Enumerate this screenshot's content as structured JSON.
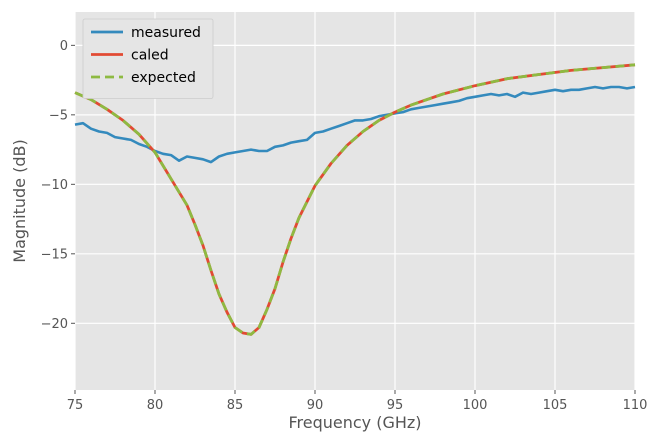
{
  "chart_data": {
    "type": "line",
    "xlabel": "Frequency (GHz)",
    "ylabel": "Magnitude (dB)",
    "xlim": [
      75,
      110
    ],
    "ylim": [
      -24.8,
      2.4
    ],
    "xticks": [
      75,
      80,
      85,
      90,
      95,
      100,
      105,
      110
    ],
    "yticks": [
      0,
      -5,
      -10,
      -15,
      -20
    ],
    "xtick_labels": [
      "75",
      "80",
      "85",
      "90",
      "95",
      "100",
      "105",
      "110"
    ],
    "ytick_labels": [
      "0",
      "−5",
      "−10",
      "−15",
      "−20"
    ],
    "grid": true,
    "style": "ggplot",
    "legend": {
      "placement": "top-left"
    },
    "series": [
      {
        "name": "measured",
        "color": "#348ABD",
        "dash": "solid",
        "x": [
          75,
          75.5,
          76,
          76.5,
          77,
          77.5,
          78,
          78.5,
          79,
          79.5,
          80,
          80.5,
          81,
          81.5,
          82,
          82.5,
          83,
          83.5,
          84,
          84.5,
          85,
          85.5,
          86,
          86.5,
          87,
          87.5,
          88,
          88.5,
          89,
          89.5,
          90,
          90.5,
          91,
          91.5,
          92,
          92.5,
          93,
          93.5,
          94,
          94.5,
          95,
          95.5,
          96,
          96.5,
          97,
          97.5,
          98,
          98.5,
          99,
          99.5,
          100,
          100.5,
          101,
          101.5,
          102,
          102.5,
          103,
          103.5,
          104,
          104.5,
          105,
          105.5,
          106,
          106.5,
          107,
          107.5,
          108,
          108.5,
          109,
          109.5,
          110
        ],
        "y": [
          -5.7,
          -5.6,
          -6.0,
          -6.2,
          -6.3,
          -6.6,
          -6.7,
          -6.8,
          -7.1,
          -7.3,
          -7.6,
          -7.8,
          -7.9,
          -8.3,
          -8.0,
          -8.1,
          -8.2,
          -8.4,
          -8.0,
          -7.8,
          -7.7,
          -7.6,
          -7.5,
          -7.6,
          -7.6,
          -7.3,
          -7.2,
          -7.0,
          -6.9,
          -6.8,
          -6.3,
          -6.2,
          -6.0,
          -5.8,
          -5.6,
          -5.4,
          -5.4,
          -5.3,
          -5.1,
          -5.0,
          -4.9,
          -4.8,
          -4.6,
          -4.5,
          -4.4,
          -4.3,
          -4.2,
          -4.1,
          -4.0,
          -3.8,
          -3.7,
          -3.6,
          -3.5,
          -3.6,
          -3.5,
          -3.7,
          -3.4,
          -3.5,
          -3.4,
          -3.3,
          -3.2,
          -3.3,
          -3.2,
          -3.2,
          -3.1,
          -3.0,
          -3.1,
          -3.0,
          -3.0,
          -3.1,
          -3.0
        ]
      },
      {
        "name": "caled",
        "color": "#E24A33",
        "dash": "solid",
        "x": [
          75,
          76,
          77,
          78,
          79,
          80,
          81,
          82,
          82.5,
          83,
          83.5,
          84,
          84.5,
          85,
          85.5,
          86,
          86.5,
          87,
          87.5,
          88,
          88.5,
          89,
          90,
          91,
          92,
          93,
          94,
          95,
          96,
          98,
          100,
          102,
          104,
          106,
          108,
          110
        ],
        "y": [
          -3.4,
          -3.9,
          -4.6,
          -5.4,
          -6.4,
          -7.7,
          -9.6,
          -11.5,
          -12.9,
          -14.4,
          -16.2,
          -17.9,
          -19.2,
          -20.3,
          -20.7,
          -20.8,
          -20.3,
          -19.0,
          -17.5,
          -15.6,
          -13.9,
          -12.4,
          -10.1,
          -8.5,
          -7.2,
          -6.2,
          -5.4,
          -4.8,
          -4.3,
          -3.5,
          -2.9,
          -2.4,
          -2.1,
          -1.8,
          -1.6,
          -1.4
        ]
      },
      {
        "name": "expected",
        "color": "#8EBA42",
        "dash": "dashed",
        "x": [
          75,
          76,
          77,
          78,
          79,
          80,
          81,
          82,
          82.5,
          83,
          83.5,
          84,
          84.5,
          85,
          85.5,
          86,
          86.5,
          87,
          87.5,
          88,
          88.5,
          89,
          90,
          91,
          92,
          93,
          94,
          95,
          96,
          98,
          100,
          102,
          104,
          106,
          108,
          110
        ],
        "y": [
          -3.4,
          -3.9,
          -4.6,
          -5.4,
          -6.4,
          -7.7,
          -9.6,
          -11.5,
          -12.9,
          -14.4,
          -16.2,
          -17.9,
          -19.2,
          -20.3,
          -20.7,
          -20.8,
          -20.3,
          -19.0,
          -17.5,
          -15.6,
          -13.9,
          -12.4,
          -10.1,
          -8.5,
          -7.2,
          -6.2,
          -5.4,
          -4.8,
          -4.3,
          -3.5,
          -2.9,
          -2.4,
          -2.1,
          -1.8,
          -1.6,
          -1.4
        ]
      }
    ]
  }
}
